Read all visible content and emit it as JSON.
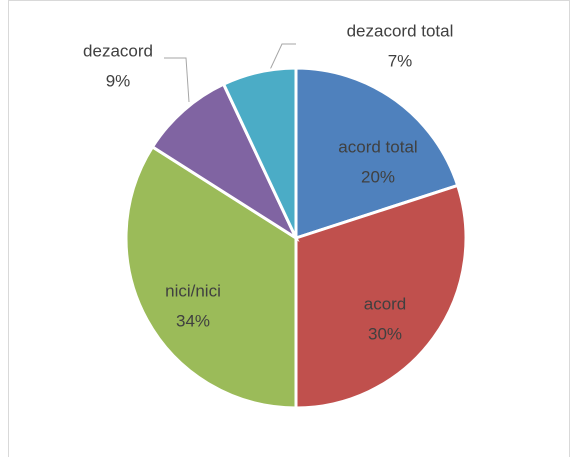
{
  "chart_data": {
    "type": "pie",
    "categories": [
      "acord total",
      "acord",
      "nici/nici",
      "dezacord",
      "dezacord total"
    ],
    "values": [
      20,
      30,
      34,
      9,
      7
    ],
    "value_labels": [
      "20%",
      "30%",
      "34%",
      "9%",
      "7%"
    ],
    "colors": [
      "#4f81bd",
      "#c0504d",
      "#9bbb59",
      "#8064a2",
      "#4bacc6"
    ]
  }
}
